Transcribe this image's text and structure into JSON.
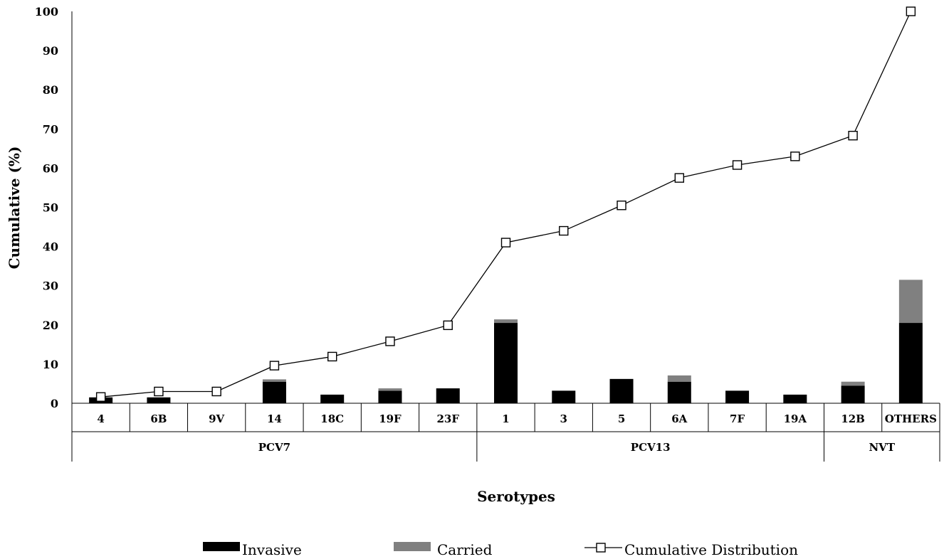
{
  "chart_data": {
    "type": "bar",
    "title": "",
    "xlabel": "Serotypes",
    "ylabel": "Cumulative (%)",
    "ylim": [
      0,
      100
    ],
    "yticks": [
      0,
      10,
      20,
      30,
      40,
      50,
      60,
      70,
      80,
      90,
      100
    ],
    "grid": false,
    "legend_position": "bottom",
    "categories": [
      "4",
      "6B",
      "9V",
      "14",
      "18C",
      "19F",
      "23F",
      "1",
      "3",
      "5",
      "6A",
      "7F",
      "19A",
      "12B",
      "OTHERS"
    ],
    "groups": [
      {
        "label": "PCV7",
        "count": 7
      },
      {
        "label": "PCV13",
        "count": 6
      },
      {
        "label": "NVT",
        "count": 2
      }
    ],
    "series": [
      {
        "name": "Invasive",
        "kind": "bar",
        "color": "#000000",
        "values": [
          1.5,
          1.5,
          0,
          5.5,
          2.2,
          3.2,
          3.8,
          20.5,
          3.2,
          6.2,
          5.5,
          3.2,
          2.2,
          4.5,
          20.5
        ]
      },
      {
        "name": "Carried",
        "kind": "bar-stacked",
        "color": "#808080",
        "values": [
          0,
          0,
          0,
          0.6,
          0,
          0.6,
          0,
          0.9,
          0,
          0,
          1.6,
          0,
          0,
          1,
          11
        ]
      },
      {
        "name": "Cumulative Distribution",
        "kind": "line",
        "color": "#000000",
        "values": [
          1.6,
          3.0,
          3.0,
          9.6,
          11.9,
          15.8,
          19.9,
          41.0,
          44.0,
          50.5,
          57.5,
          60.8,
          63.0,
          68.3,
          100
        ]
      }
    ]
  }
}
